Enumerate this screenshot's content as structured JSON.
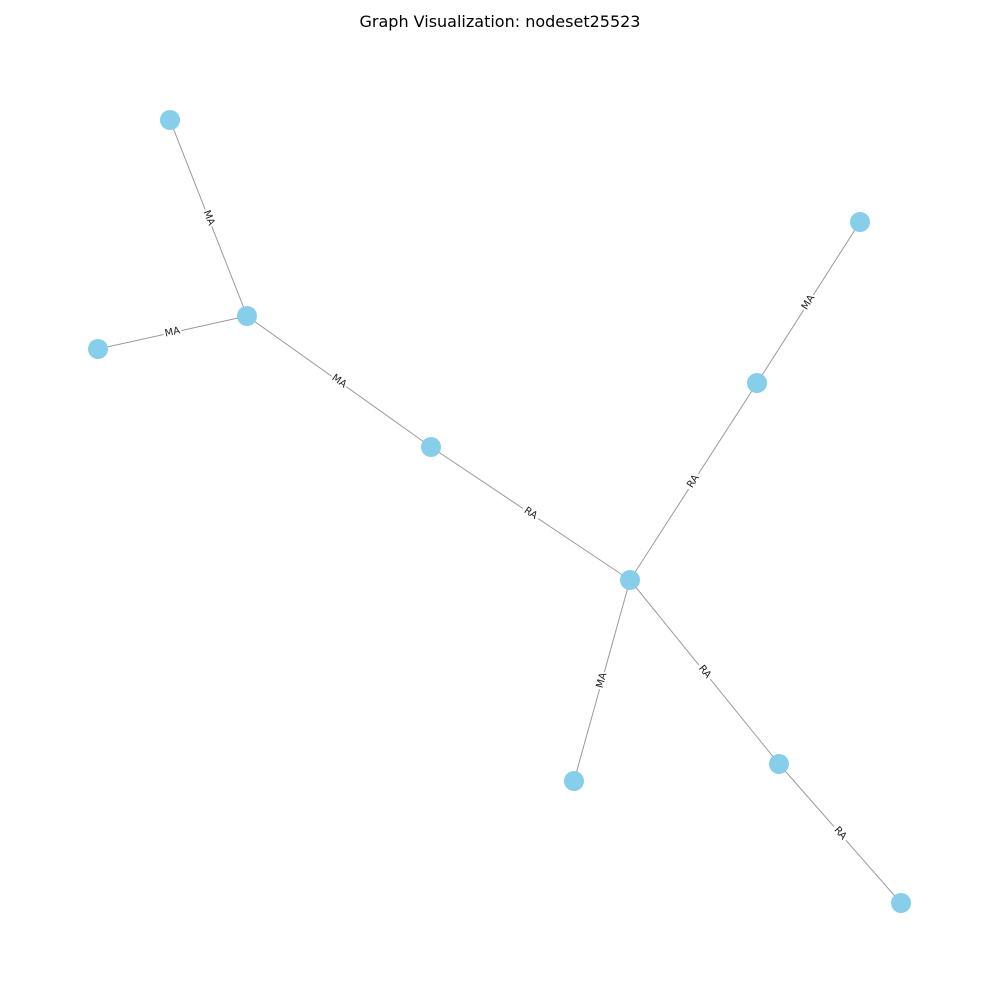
{
  "title": "Graph Visualization: nodeset25523",
  "colors": {
    "node": "#87ceeb",
    "edge": "#9a9a9a",
    "label": "#222222"
  },
  "nodes": [
    {
      "id": "n1"
    },
    {
      "id": "n2"
    },
    {
      "id": "n3"
    },
    {
      "id": "n4"
    },
    {
      "id": "n5"
    },
    {
      "id": "n6"
    },
    {
      "id": "n7"
    },
    {
      "id": "n8"
    },
    {
      "id": "n9"
    },
    {
      "id": "n10"
    },
    {
      "id": "n11"
    }
  ],
  "edges": [
    {
      "source": "n1",
      "target": "n2",
      "label": "MA"
    },
    {
      "source": "n3",
      "target": "n2",
      "label": "MA"
    },
    {
      "source": "n2",
      "target": "n4",
      "label": "MA"
    },
    {
      "source": "n4",
      "target": "n5",
      "label": "RA"
    },
    {
      "source": "n5",
      "target": "n6",
      "label": "RA"
    },
    {
      "source": "n6",
      "target": "n7",
      "label": "MA"
    },
    {
      "source": "n5",
      "target": "n8",
      "label": "MA"
    },
    {
      "source": "n5",
      "target": "n9",
      "label": "RA"
    },
    {
      "source": "n9",
      "target": "n10",
      "label": "RA"
    }
  ]
}
